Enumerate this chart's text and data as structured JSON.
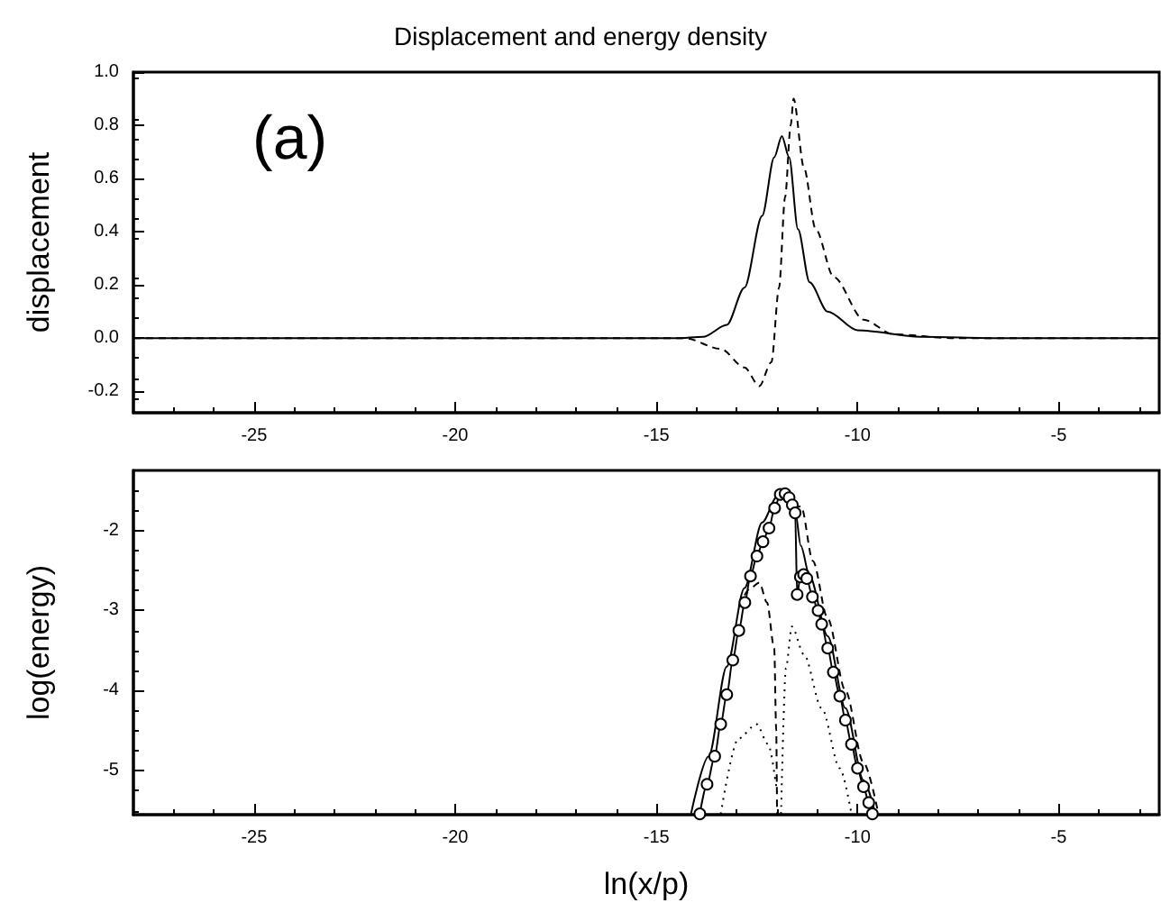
{
  "chart_data": [
    {
      "type": "line",
      "title": "Displacement and energy density",
      "ylabel": "displacement",
      "annotations": [
        "(a)"
      ],
      "xlim": [
        -28,
        -2.5
      ],
      "xticks": [
        -25,
        -20,
        -15,
        -10,
        -5
      ],
      "ylim": [
        -0.28,
        1.0
      ],
      "yticks": [
        -0.2,
        {
          "value": 0,
          "label": "0.0"
        },
        0.2,
        0.4,
        0.6,
        0.8,
        {
          "value": 1,
          "label": "1.0"
        }
      ],
      "grid": false,
      "marker": "none",
      "series": [
        {
          "color": "#000000",
          "line_style": "solid",
          "x": [
            -28,
            -14.5,
            -13.84,
            -13.25,
            -12.81,
            -12.37,
            -12.07,
            -11.88,
            -11.7,
            -11.48,
            -11.19,
            -10.74,
            -10.0,
            -8.37,
            -6.5,
            -2.5
          ],
          "values": [
            0,
            0,
            0.005,
            0.05,
            0.19,
            0.46,
            0.68,
            0.76,
            0.68,
            0.41,
            0.21,
            0.1,
            0.03,
            0.005,
            0,
            0
          ]
        },
        {
          "color": "#000000",
          "line_style": "dashed",
          "x": [
            -28,
            -14.29,
            -13.4,
            -12.81,
            -12.44,
            -12.14,
            -11.95,
            -11.8,
            -11.66,
            -11.59,
            -11.33,
            -11.04,
            -10.59,
            -9.85,
            -9.11,
            -7.6,
            -2.5
          ],
          "values": [
            0,
            0,
            -0.04,
            -0.11,
            -0.18,
            -0.09,
            0.19,
            0.53,
            0.8,
            0.9,
            0.64,
            0.41,
            0.23,
            0.07,
            0.015,
            0,
            0
          ]
        }
      ]
    },
    {
      "type": "line",
      "xlabel": "ln(x/p)",
      "ylabel": "log(energy)",
      "xlim": [
        -28,
        -2.5
      ],
      "xticks": [
        -25,
        -20,
        -15,
        -10,
        -5
      ],
      "ylim": [
        -5.55,
        -1.25
      ],
      "yticks": [
        -5,
        -4,
        -3,
        -2
      ],
      "grid": false,
      "series": [
        {
          "color": "#000000",
          "line_style": "solid",
          "marker": "none",
          "x": [
            -14.14,
            -13.7,
            -13.25,
            -12.81,
            -12.37,
            -12.0,
            -11.78,
            -11.55,
            -11.41,
            -11.19,
            -10.74,
            -10.3,
            -9.85,
            -9.56
          ],
          "values": [
            -5.54,
            -4.82,
            -3.7,
            -2.72,
            -1.9,
            -1.58,
            -1.55,
            -1.75,
            -2.19,
            -2.57,
            -3.32,
            -4.22,
            -5.12,
            -5.54
          ]
        },
        {
          "color": "#000000",
          "line_style": "solid",
          "marker": "circle",
          "x": [
            -13.92,
            -13.74,
            -13.55,
            -13.4,
            -13.25,
            -13.1,
            -12.95,
            -12.8,
            -12.66,
            -12.5,
            -12.35,
            -12.2,
            -12.06,
            -11.92,
            -11.8,
            -11.7,
            -11.62,
            -11.55,
            -11.5,
            -11.42,
            -11.34,
            -11.26,
            -11.12,
            -10.98,
            -10.89,
            -10.74,
            -10.6,
            -10.44,
            -10.3,
            -10.15,
            -10.0,
            -9.85,
            -9.72,
            -9.63
          ],
          "values": [
            -5.54,
            -5.17,
            -4.82,
            -4.42,
            -4.05,
            -3.62,
            -3.25,
            -2.9,
            -2.57,
            -2.32,
            -2.14,
            -1.97,
            -1.72,
            -1.55,
            -1.54,
            -1.59,
            -1.68,
            -1.78,
            -2.8,
            -2.58,
            -2.55,
            -2.6,
            -2.83,
            -3.0,
            -3.17,
            -3.47,
            -3.77,
            -4.07,
            -4.37,
            -4.67,
            -4.97,
            -5.2,
            -5.4,
            -5.54
          ]
        },
        {
          "color": "#000000",
          "line_style": "dashed",
          "marker": "none",
          "x": [
            -12.95,
            -12.66,
            -12.44,
            -12.25,
            -12.07,
            -12.02,
            -12.0,
            null,
            -11.6,
            -11.4,
            -11.11,
            -10.74,
            -10.3,
            -9.85,
            -9.48
          ],
          "values": [
            -2.95,
            -2.72,
            -2.65,
            -2.9,
            -3.47,
            -4.5,
            -5.54,
            null,
            -1.7,
            -1.7,
            -2.38,
            -3.1,
            -4.0,
            -4.9,
            -5.54
          ]
        },
        {
          "color": "#000000",
          "line_style": "dotted",
          "marker": "none",
          "x": [
            -13.4,
            -12.96,
            -12.51,
            -12.22,
            -12.0,
            null,
            -11.9,
            -11.78,
            -11.63,
            -11.33,
            -10.89,
            -10.44,
            -10.15
          ],
          "values": [
            -5.54,
            -4.6,
            -4.42,
            -4.67,
            -5.27,
            null,
            -5.54,
            -3.72,
            -3.2,
            -3.55,
            -4.22,
            -4.97,
            -5.54
          ]
        }
      ]
    }
  ]
}
